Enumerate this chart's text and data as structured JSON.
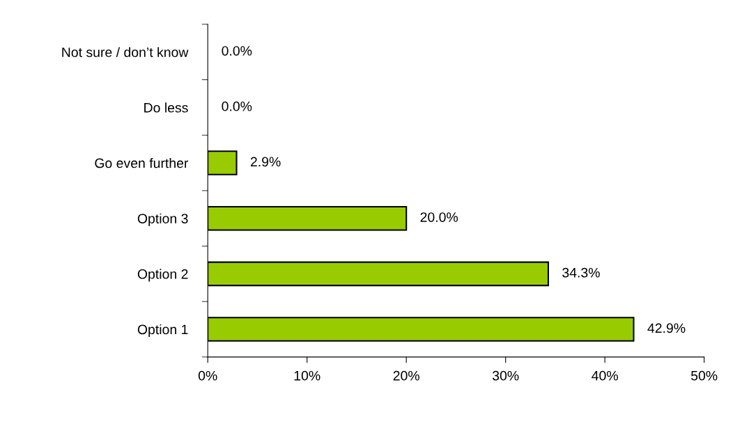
{
  "chart_data": {
    "type": "bar",
    "orientation": "horizontal",
    "categories": [
      "Not sure / don’t know",
      "Do less",
      "Go even further",
      "Option 3",
      "Option 2",
      "Option 1"
    ],
    "values": [
      0.0,
      0.0,
      2.9,
      20.0,
      34.3,
      42.9
    ],
    "value_labels": [
      "0.0%",
      "0.0%",
      "2.9%",
      "20.0%",
      "34.3%",
      "42.9%"
    ],
    "color": "#99cc00",
    "xlim": [
      0,
      50
    ],
    "xticks": [
      {
        "value": 0,
        "label": "0%"
      },
      {
        "value": 10,
        "label": "10%"
      },
      {
        "value": 20,
        "label": "20%"
      },
      {
        "value": 30,
        "label": "30%"
      },
      {
        "value": 40,
        "label": "40%"
      },
      {
        "value": 50,
        "label": "50%"
      }
    ],
    "grid": false,
    "legend": false
  }
}
